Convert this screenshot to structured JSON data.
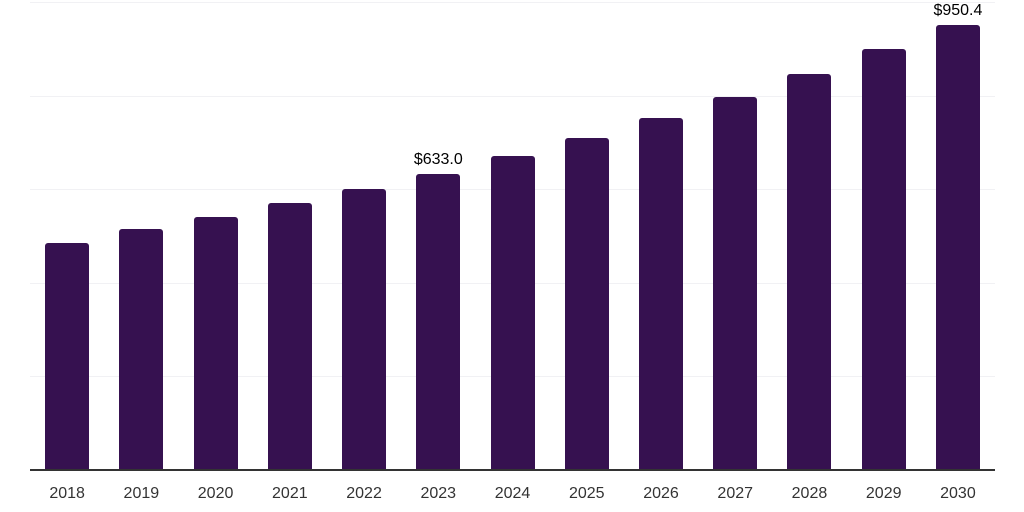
{
  "chart_data": {
    "type": "bar",
    "title": "",
    "xlabel": "",
    "ylabel": "",
    "categories": [
      "2018",
      "2019",
      "2020",
      "2021",
      "2022",
      "2023",
      "2024",
      "2025",
      "2026",
      "2027",
      "2028",
      "2029",
      "2030"
    ],
    "values": [
      486,
      514,
      540,
      570,
      600,
      633.0,
      671,
      710,
      753,
      798,
      847,
      899,
      950.4
    ],
    "bar_labels": [
      "",
      "",
      "",
      "",
      "",
      "$633.0",
      "",
      "",
      "",
      "",
      "",
      "",
      "$950.4"
    ],
    "ylim": [
      0,
      1000
    ],
    "gridline_step": 200,
    "grid": "horizontal-only",
    "legend": "none",
    "y_tick_labels_visible": false,
    "colors": {
      "bar": "#361150",
      "background": "#ffffff",
      "gridline": "#f1f1f4",
      "axis_line": "#333333",
      "tick_label": "#333333",
      "value_label": "#000000"
    }
  }
}
